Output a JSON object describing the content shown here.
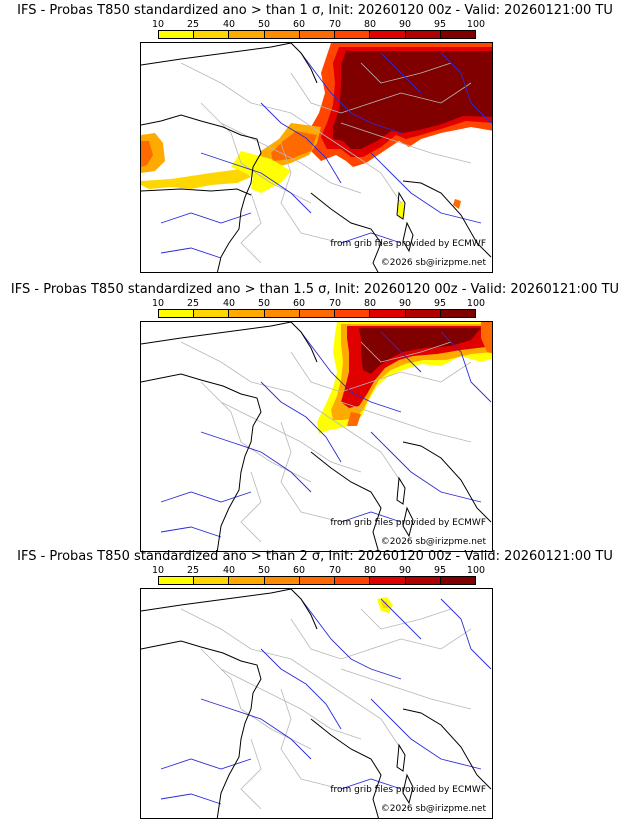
{
  "panels": [
    {
      "title": "IFS - Probas T850  standardized ano > than 1 σ, Init: 20260120 00z - Valid: 20260121:00 TU",
      "threshold": "1"
    },
    {
      "title": "IFS - Probas T850  standardized ano > than 1.5 σ, Init: 20260120 00z - Valid: 20260121:00 TU",
      "threshold": "1.5"
    },
    {
      "title": "IFS - Probas T850  standardized ano > than 2 σ, Init: 20260120 00z - Valid: 20260121:00 TU",
      "threshold": "2"
    }
  ],
  "colorbar": {
    "ticks": [
      "10",
      "25",
      "40",
      "50",
      "60",
      "70",
      "80",
      "90",
      "95",
      "100"
    ],
    "colors": [
      "#ffff00",
      "#ffd700",
      "#ffaa00",
      "#ff8c00",
      "#ff6a00",
      "#ff4500",
      "#e00000",
      "#b00000",
      "#800000"
    ]
  },
  "credits": {
    "source": "from grib files provided by ECMWF",
    "copyright": "©2026 sb@irizpme.net"
  },
  "colors": {
    "coast": "#000000",
    "rivers": "#2a2ad8",
    "borders": "#b8b8b8"
  }
}
